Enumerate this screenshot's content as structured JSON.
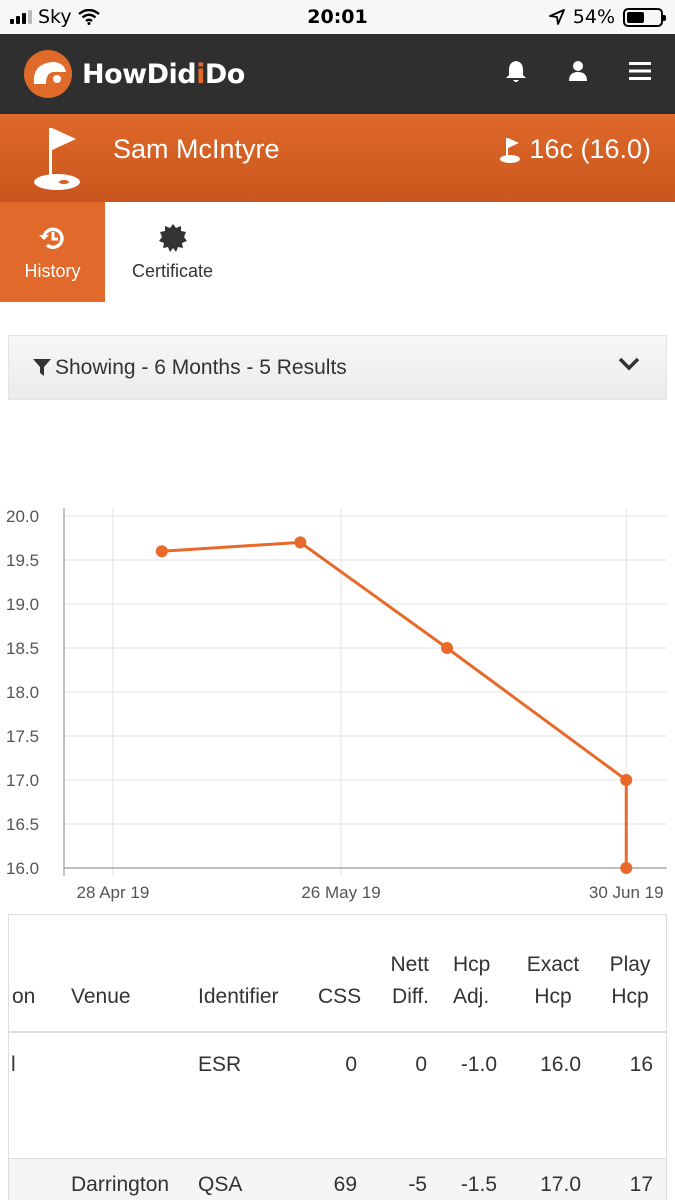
{
  "status_bar": {
    "carrier": "Sky",
    "time": "20:01",
    "battery": "54%",
    "battery_level": 0.54
  },
  "header": {
    "logo_text_1": "HowDid",
    "logo_text_accent": "i",
    "logo_text_2": "Do",
    "icons": [
      "bell-icon",
      "user-icon",
      "menu-icon"
    ]
  },
  "player": {
    "name": "Sam McIntyre",
    "handicap": "16c (16.0)"
  },
  "tabs": [
    {
      "label": "History",
      "icon": "history-icon"
    },
    {
      "label": "Certificate",
      "icon": "badge-icon"
    }
  ],
  "filter": {
    "label": "Showing - 6 Months - 5 Results"
  },
  "chart_data": {
    "type": "line",
    "title": "",
    "xlabel": "",
    "ylabel": "",
    "ylim": [
      16.0,
      20.0
    ],
    "y_ticks": [
      "20.0",
      "19.5",
      "19.0",
      "18.5",
      "18.0",
      "17.5",
      "17.0",
      "16.5",
      "16.0"
    ],
    "x_ticks": [
      "28 Apr 19",
      "26 May 19",
      "30 Jun 19"
    ],
    "x_tick_days": [
      0,
      28,
      63
    ],
    "x_range_days": [
      -6,
      68
    ],
    "series": [
      {
        "color": "#e8692a",
        "points": [
          {
            "x": "4 May 19",
            "day": 6,
            "y": 19.6
          },
          {
            "x": "21 May 19",
            "day": 23,
            "y": 19.7
          },
          {
            "x": "8 Jun 19",
            "day": 41,
            "y": 18.5
          },
          {
            "x": "30 Jun 19",
            "day": 63,
            "y": 17.0
          },
          {
            "x": "30 Jun 19",
            "day": 63,
            "y": 16.0
          }
        ]
      }
    ],
    "grid": true
  },
  "table": {
    "headers": [
      "on",
      "Venue",
      "Identifier",
      "CSS",
      "Nett Diff.",
      "Hcp Adj.",
      "Exact Hcp",
      "Play Hcp"
    ],
    "header_lines": {
      "on": [
        "on"
      ],
      "venue": [
        "Venue"
      ],
      "identifier": [
        "Identifier"
      ],
      "css": [
        "CSS"
      ],
      "nett": [
        "Nett",
        "Diff."
      ],
      "hcp_adj": [
        "Hcp",
        "Adj."
      ],
      "exact": [
        "Exact",
        "Hcp"
      ],
      "play": [
        "Play",
        "Hcp"
      ]
    },
    "rows": [
      {
        "comp": "l",
        "venue": "",
        "identifier": "ESR",
        "css": "0",
        "nett": "0",
        "hcp_adj": "-1.0",
        "exact": "16.0",
        "play": "16"
      },
      {
        "comp": "",
        "venue": "Darrington",
        "identifier": "QSA",
        "css": "69",
        "nett": "-5",
        "hcp_adj": "-1.5",
        "exact": "17.0",
        "play": "17"
      }
    ]
  }
}
